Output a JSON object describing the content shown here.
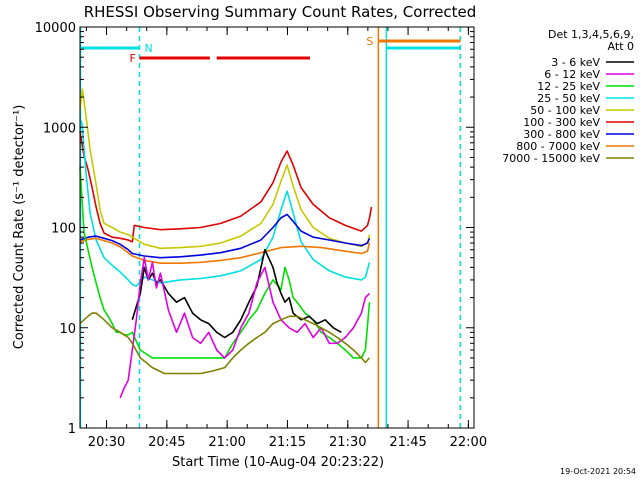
{
  "chart_data": {
    "type": "line",
    "title": "RHESSI Observing Summary Count Rates, Corrected",
    "xlabel": "Start Time (10-Aug-04 20:23:22)",
    "ylabel": "Corrected Count Rate (s⁻¹ detector⁻¹)",
    "x_unit": "minutes after 20:23:22",
    "xlim": [
      0,
      98
    ],
    "ylim": [
      1,
      10000
    ],
    "yscale": "log",
    "x_ticks": [
      {
        "at": 6.6,
        "label": "20:30"
      },
      {
        "at": 21.6,
        "label": "20:45"
      },
      {
        "at": 36.6,
        "label": "21:00"
      },
      {
        "at": 51.6,
        "label": "21:15"
      },
      {
        "at": 66.6,
        "label": "21:30"
      },
      {
        "at": 81.6,
        "label": "21:45"
      },
      {
        "at": 96.6,
        "label": "22:00"
      }
    ],
    "y_ticks": [
      {
        "at": 1,
        "label": "1"
      },
      {
        "at": 10,
        "label": "10"
      },
      {
        "at": 100,
        "label": "100"
      },
      {
        "at": 1000,
        "label": "1000"
      },
      {
        "at": 10000,
        "label": "10000"
      }
    ],
    "legend": {
      "placement": "right",
      "header": [
        "Det 1,3,4,5,6,9,",
        "Att 0"
      ],
      "entries": [
        {
          "label": "3 - 6 keV",
          "color": "#000000"
        },
        {
          "label": "6 - 12 keV",
          "color": "#e000e0"
        },
        {
          "label": "12 - 25 keV",
          "color": "#00e000"
        },
        {
          "label": "25 - 50 keV",
          "color": "#00e0e0"
        },
        {
          "label": "50 - 100 keV",
          "color": "#c8c800"
        },
        {
          "label": "100 - 300 keV",
          "color": "#e00000"
        },
        {
          "label": "300 - 800 keV",
          "color": "#0000e0"
        },
        {
          "label": "800 - 7000 keV",
          "color": "#f07800"
        },
        {
          "label": "7000 - 15000 keV",
          "color": "#808000"
        }
      ]
    },
    "series": [
      {
        "name": "100 - 300 keV",
        "color": "#e00000",
        "x": [
          0,
          1,
          2,
          3,
          4,
          5,
          6,
          8,
          10,
          12,
          13,
          13.5,
          16,
          20,
          25,
          30,
          35,
          40,
          45,
          48,
          50,
          51.5,
          53,
          55,
          58,
          62,
          66,
          70,
          71.5,
          72,
          72.5
        ],
        "y": [
          900,
          520,
          380,
          250,
          160,
          110,
          88,
          80,
          78,
          75,
          72,
          105,
          100,
          95,
          97,
          100,
          110,
          130,
          180,
          280,
          450,
          580,
          420,
          250,
          170,
          125,
          105,
          92,
          105,
          125,
          160
        ]
      },
      {
        "name": "50 - 100 keV",
        "color": "#c8c800",
        "x": [
          0,
          0.6,
          1.5,
          2.5,
          4,
          5,
          6,
          8,
          10,
          12,
          13,
          16,
          20,
          25,
          30,
          35,
          40,
          45,
          48,
          50,
          51.5,
          53,
          55,
          58,
          62,
          66,
          70,
          71.5,
          72
        ],
        "y": [
          1500,
          2400,
          1300,
          600,
          270,
          150,
          110,
          100,
          90,
          85,
          80,
          68,
          62,
          63,
          65,
          70,
          82,
          110,
          170,
          290,
          420,
          260,
          150,
          100,
          78,
          70,
          65,
          70,
          85
        ]
      },
      {
        "name": "25 - 50 keV",
        "color": "#00e0e0",
        "x": [
          0,
          0.5,
          1.5,
          2.5,
          4,
          6,
          8,
          10,
          12,
          13,
          14,
          16,
          18,
          20,
          25,
          30,
          35,
          40,
          45,
          48,
          50,
          51.5,
          53,
          55,
          58,
          62,
          66,
          70,
          71,
          72
        ],
        "y": [
          1200,
          1100,
          350,
          140,
          75,
          50,
          42,
          36,
          30,
          27,
          26,
          32,
          30,
          28,
          30,
          31,
          33,
          37,
          48,
          80,
          150,
          230,
          140,
          72,
          48,
          37,
          32,
          30,
          32,
          45
        ]
      },
      {
        "name": "300 - 800 keV",
        "color": "#0000e0",
        "x": [
          0,
          2,
          4,
          6,
          8,
          10,
          12,
          13,
          16,
          20,
          25,
          30,
          35,
          40,
          45,
          48,
          50,
          51.5,
          53,
          55,
          58,
          62,
          66,
          70,
          71.5,
          72
        ],
        "y": [
          75,
          80,
          82,
          78,
          74,
          68,
          60,
          55,
          52,
          50,
          51,
          53,
          56,
          62,
          75,
          100,
          125,
          135,
          115,
          92,
          80,
          75,
          70,
          66,
          70,
          78
        ]
      },
      {
        "name": "800 - 7000 keV",
        "color": "#f07800",
        "x": [
          0,
          2,
          4,
          6,
          8,
          10,
          12,
          13,
          16,
          20,
          25,
          30,
          35,
          40,
          45,
          50,
          55,
          60,
          66,
          70,
          71.5,
          72
        ],
        "y": [
          72,
          76,
          78,
          74,
          70,
          64,
          56,
          52,
          47,
          44,
          44,
          45,
          47,
          50,
          56,
          63,
          65,
          63,
          58,
          55,
          58,
          70
        ]
      },
      {
        "name": "12 - 25 keV",
        "color": "#00e000",
        "x": [
          0,
          1,
          2,
          3,
          4,
          5,
          6,
          7,
          8,
          9,
          10,
          11,
          12,
          13,
          15,
          18,
          21,
          24,
          27,
          30,
          33,
          36,
          38,
          40,
          42,
          44,
          46,
          48,
          50,
          51,
          52,
          53,
          54,
          56,
          58,
          60,
          62,
          64,
          66,
          68,
          70,
          71,
          72
        ],
        "y": [
          400,
          90,
          60,
          40,
          28,
          20,
          15,
          13,
          11,
          9,
          9,
          8.5,
          8.5,
          9,
          6,
          5,
          5,
          5,
          5,
          5,
          5,
          5,
          7,
          9,
          12,
          15,
          22,
          30,
          24,
          40,
          30,
          20,
          18,
          14,
          12,
          9,
          8,
          7,
          6,
          5,
          5,
          6,
          18
        ]
      },
      {
        "name": "3 - 6 keV",
        "color": "#000000",
        "x": [
          13,
          15,
          16,
          17,
          18,
          19,
          20,
          22,
          24,
          26,
          28,
          30,
          32,
          34,
          36,
          38,
          40,
          42,
          44,
          46,
          48,
          49,
          50,
          51,
          52,
          53,
          55,
          57,
          59,
          61,
          63,
          65
        ],
        "y": [
          12,
          22,
          40,
          30,
          35,
          28,
          30,
          22,
          18,
          20,
          14,
          12,
          11,
          9,
          8,
          9,
          12,
          18,
          26,
          60,
          40,
          28,
          22,
          18,
          20,
          14,
          12,
          13,
          11,
          12,
          10,
          9
        ]
      },
      {
        "name": "6 - 12 keV",
        "color": "#e000e0",
        "x": [
          10,
          11,
          12,
          13,
          14,
          15,
          16,
          17,
          18,
          19,
          20,
          22,
          24,
          26,
          28,
          30,
          32,
          34,
          36,
          38,
          40,
          42,
          44,
          46,
          48,
          50,
          52,
          54,
          56,
          58,
          60,
          62,
          64,
          66,
          68,
          70,
          71,
          72
        ],
        "y": [
          2,
          2.5,
          3,
          6,
          12,
          28,
          50,
          30,
          45,
          25,
          35,
          15,
          9,
          14,
          8,
          7,
          9,
          6,
          5,
          6,
          10,
          14,
          28,
          40,
          18,
          12,
          10,
          9,
          11,
          8,
          10,
          7,
          7,
          8,
          10,
          14,
          20,
          22
        ]
      },
      {
        "name": "7000 - 15000 keV",
        "color": "#808000",
        "x": [
          0,
          1,
          2,
          3,
          4,
          5,
          6,
          8,
          10,
          12,
          13,
          15,
          18,
          21,
          24,
          27,
          30,
          33,
          36,
          38,
          40,
          42,
          44,
          46,
          48,
          50,
          52,
          54,
          56,
          58,
          60,
          62,
          64,
          66,
          68,
          70,
          71,
          72
        ],
        "y": [
          11,
          12,
          13,
          14,
          14,
          13,
          12,
          10,
          9,
          8,
          7,
          5,
          4,
          3.5,
          3.5,
          3.5,
          3.5,
          3.7,
          4,
          5,
          6,
          7,
          8,
          9,
          11,
          12,
          13,
          13,
          12,
          11,
          10,
          9,
          8,
          7,
          6,
          5,
          4.5,
          5
        ]
      }
    ],
    "annotations": [
      {
        "label": "N",
        "color": "#00e0e0",
        "x": 14.8
      },
      {
        "label": "F",
        "color": "#e00000",
        "x": 14.8
      },
      {
        "label": "S",
        "color": "#f07800",
        "x": 74.2
      }
    ],
    "flag_bars": [
      {
        "label": "N",
        "color": "#00e0e0",
        "x_ranges": [
          [
            0,
            14.8
          ],
          [
            76.2,
            94.6
          ]
        ]
      },
      {
        "label": "F",
        "color": "#e00000",
        "x_ranges": [
          [
            14.8,
            32.3
          ],
          [
            34,
            57.2
          ]
        ]
      },
      {
        "label": "S",
        "color": "#f07800",
        "x_ranges": [
          [
            74.2,
            94.6
          ]
        ]
      }
    ],
    "vertical_markers": [
      {
        "x": 0.1,
        "color": "#00e0e0",
        "style": "solid"
      },
      {
        "x": 14.8,
        "color": "#00e0e0",
        "style": "dashed"
      },
      {
        "x": 74.2,
        "color": "#f07800",
        "style": "solid"
      },
      {
        "x": 76.2,
        "color": "#00e0e0",
        "style": "solid"
      },
      {
        "x": 94.6,
        "color": "#f07800",
        "style": "dashed"
      },
      {
        "x": 94.6,
        "color": "#00e0e0",
        "style": "dashed"
      }
    ],
    "grid": false
  },
  "footer": {
    "date_stamp": "19-Oct-2021 20:54"
  }
}
